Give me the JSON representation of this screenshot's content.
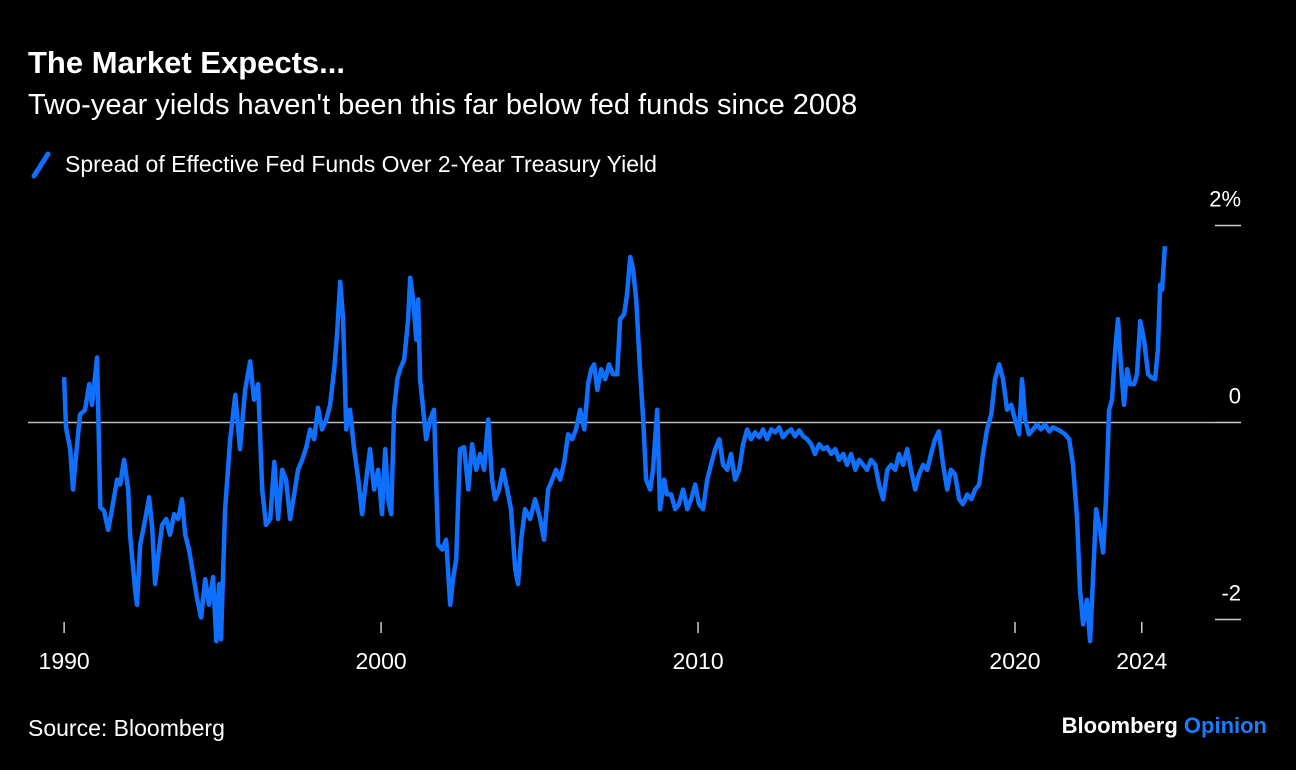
{
  "chart_data": {
    "type": "line",
    "title": "The Market Expects...",
    "subtitle": "Two-year yields haven't been this far below fed funds since 2008",
    "source": "Source: Bloomberg",
    "brand": "Bloomberg",
    "brand_suffix": "Opinion",
    "x": [
      1990.0,
      1990.06,
      1990.19,
      1990.28,
      1990.38,
      1990.5,
      1990.66,
      1990.79,
      1990.88,
      1991.04,
      1991.14,
      1991.26,
      1991.39,
      1991.51,
      1991.67,
      1991.77,
      1991.89,
      1992.02,
      1992.08,
      1992.24,
      1992.3,
      1992.4,
      1992.56,
      1992.68,
      1992.78,
      1992.87,
      1992.97,
      1993.09,
      1993.22,
      1993.34,
      1993.47,
      1993.6,
      1993.72,
      1993.82,
      1993.94,
      1994.07,
      1994.2,
      1994.32,
      1994.45,
      1994.57,
      1994.7,
      1994.8,
      1994.89,
      1994.95,
      1995.08,
      1995.24,
      1995.4,
      1995.55,
      1995.71,
      1995.87,
      1995.99,
      1996.12,
      1996.25,
      1996.37,
      1996.5,
      1996.63,
      1996.75,
      1996.88,
      1997.0,
      1997.13,
      1997.26,
      1997.38,
      1997.51,
      1997.64,
      1997.76,
      1997.89,
      1998.01,
      1998.14,
      1998.27,
      1998.39,
      1998.52,
      1998.61,
      1998.71,
      1998.8,
      1998.9,
      1999.02,
      1999.15,
      1999.28,
      1999.4,
      1999.53,
      1999.65,
      1999.78,
      1999.91,
      2000.03,
      2000.13,
      2000.22,
      2000.32,
      2000.41,
      2000.51,
      2000.6,
      2000.73,
      2000.85,
      2000.92,
      2001.01,
      2001.11,
      2001.17,
      2001.23,
      2001.33,
      2001.42,
      2001.55,
      2001.67,
      2001.8,
      2001.93,
      2002.05,
      2002.18,
      2002.27,
      2002.37,
      2002.49,
      2002.62,
      2002.75,
      2002.87,
      2003.0,
      2003.12,
      2003.25,
      2003.38,
      2003.5,
      2003.6,
      2003.72,
      2003.85,
      2003.98,
      2004.1,
      2004.23,
      2004.32,
      2004.42,
      2004.54,
      2004.7,
      2004.86,
      2005.02,
      2005.14,
      2005.27,
      2005.4,
      2005.52,
      2005.65,
      2005.78,
      2005.9,
      2006.03,
      2006.15,
      2006.28,
      2006.41,
      2006.53,
      2006.63,
      2006.72,
      2006.82,
      2006.94,
      2007.07,
      2007.19,
      2007.32,
      2007.45,
      2007.54,
      2007.67,
      2007.76,
      2007.86,
      2007.95,
      2008.05,
      2008.17,
      2008.27,
      2008.36,
      2008.49,
      2008.58,
      2008.71,
      2008.8,
      2008.93,
      2009.02,
      2009.15,
      2009.28,
      2009.4,
      2009.53,
      2009.66,
      2009.78,
      2009.91,
      2010.03,
      2010.16,
      2010.29,
      2010.41,
      2010.54,
      2010.67,
      2010.79,
      2010.92,
      2011.04,
      2011.17,
      2011.3,
      2011.42,
      2011.55,
      2011.67,
      2011.8,
      2011.93,
      2012.05,
      2012.18,
      2012.31,
      2012.43,
      2012.56,
      2012.68,
      2012.81,
      2012.94,
      2013.06,
      2013.19,
      2013.32,
      2013.44,
      2013.57,
      2013.69,
      2013.82,
      2013.95,
      2014.07,
      2014.2,
      2014.33,
      2014.45,
      2014.58,
      2014.7,
      2014.83,
      2014.96,
      2015.08,
      2015.21,
      2015.33,
      2015.46,
      2015.59,
      2015.71,
      2015.84,
      2015.97,
      2016.09,
      2016.22,
      2016.34,
      2016.47,
      2016.6,
      2016.72,
      2016.85,
      2016.97,
      2017.1,
      2017.23,
      2017.35,
      2017.48,
      2017.6,
      2017.73,
      2017.86,
      2017.98,
      2018.11,
      2018.24,
      2018.36,
      2018.49,
      2018.62,
      2018.74,
      2018.87,
      2018.99,
      2019.12,
      2019.25,
      2019.37,
      2019.5,
      2019.62,
      2019.75,
      2019.88,
      2020.0,
      2020.13,
      2020.22,
      2020.32,
      2020.44,
      2020.57,
      2020.7,
      2020.82,
      2020.95,
      2021.08,
      2021.2,
      2021.33,
      2021.45,
      2021.58,
      2021.71,
      2021.83,
      2021.96,
      2022.05,
      2022.15,
      2022.27,
      2022.37,
      2022.46,
      2022.56,
      2022.68,
      2022.78,
      2022.87,
      2022.97,
      2023.06,
      2023.16,
      2023.25,
      2023.35,
      2023.44,
      2023.54,
      2023.63,
      2023.76,
      2023.85,
      2023.95,
      2024.07,
      2024.2,
      2024.29,
      2024.42,
      2024.51,
      2024.58,
      2024.64,
      2024.73
    ],
    "series": [
      {
        "name": "Spread of Effective Fed Funds Over 2-Year Treasury Yield",
        "color": "#0f6fff",
        "values": [
          0.46,
          -0.05,
          -0.27,
          -0.68,
          -0.32,
          0.08,
          0.13,
          0.39,
          0.18,
          0.66,
          -0.86,
          -0.9,
          -1.09,
          -0.88,
          -0.58,
          -0.63,
          -0.38,
          -0.68,
          -1.14,
          -1.7,
          -1.85,
          -1.24,
          -0.98,
          -0.76,
          -1.07,
          -1.64,
          -1.34,
          -1.04,
          -0.98,
          -1.14,
          -0.93,
          -0.98,
          -0.78,
          -1.14,
          -1.29,
          -1.54,
          -1.8,
          -1.98,
          -1.59,
          -1.85,
          -1.57,
          -2.22,
          -1.64,
          -2.2,
          -0.88,
          -0.17,
          0.28,
          -0.27,
          0.33,
          0.62,
          0.23,
          0.39,
          -0.68,
          -1.04,
          -0.98,
          -0.4,
          -0.98,
          -0.48,
          -0.58,
          -0.98,
          -0.73,
          -0.48,
          -0.38,
          -0.25,
          -0.07,
          -0.17,
          0.15,
          -0.07,
          0.03,
          0.18,
          0.54,
          0.89,
          1.43,
          1.05,
          -0.07,
          0.13,
          -0.27,
          -0.58,
          -0.93,
          -0.58,
          -0.27,
          -0.68,
          -0.48,
          -0.93,
          -0.27,
          -0.78,
          -0.93,
          0.13,
          0.44,
          0.54,
          0.64,
          1.03,
          1.47,
          1.25,
          0.84,
          1.25,
          0.44,
          0.13,
          -0.17,
          0.03,
          0.13,
          -1.24,
          -1.29,
          -1.19,
          -1.85,
          -1.59,
          -1.39,
          -0.27,
          -0.25,
          -0.68,
          -0.22,
          -0.48,
          -0.32,
          -0.48,
          0.03,
          -0.58,
          -0.78,
          -0.68,
          -0.48,
          -0.68,
          -0.88,
          -1.49,
          -1.64,
          -1.19,
          -0.88,
          -0.98,
          -0.78,
          -0.98,
          -1.19,
          -0.68,
          -0.58,
          -0.48,
          -0.58,
          -0.4,
          -0.12,
          -0.17,
          -0.07,
          0.13,
          -0.07,
          0.39,
          0.54,
          0.59,
          0.33,
          0.54,
          0.44,
          0.59,
          0.49,
          0.49,
          1.05,
          1.1,
          1.3,
          1.68,
          1.55,
          1.25,
          0.54,
          0.03,
          -0.58,
          -0.68,
          -0.48,
          0.13,
          -0.88,
          -0.58,
          -0.73,
          -0.73,
          -0.88,
          -0.83,
          -0.68,
          -0.88,
          -0.78,
          -0.63,
          -0.83,
          -0.88,
          -0.58,
          -0.43,
          -0.27,
          -0.17,
          -0.43,
          -0.48,
          -0.32,
          -0.58,
          -0.48,
          -0.22,
          -0.07,
          -0.17,
          -0.1,
          -0.15,
          -0.07,
          -0.17,
          -0.07,
          -0.1,
          -0.05,
          -0.15,
          -0.1,
          -0.07,
          -0.14,
          -0.08,
          -0.14,
          -0.17,
          -0.22,
          -0.32,
          -0.22,
          -0.27,
          -0.25,
          -0.32,
          -0.27,
          -0.38,
          -0.32,
          -0.43,
          -0.32,
          -0.48,
          -0.38,
          -0.43,
          -0.48,
          -0.38,
          -0.43,
          -0.63,
          -0.78,
          -0.48,
          -0.43,
          -0.48,
          -0.32,
          -0.43,
          -0.27,
          -0.48,
          -0.68,
          -0.53,
          -0.43,
          -0.48,
          -0.32,
          -0.17,
          -0.09,
          -0.43,
          -0.68,
          -0.48,
          -0.53,
          -0.78,
          -0.83,
          -0.73,
          -0.78,
          -0.68,
          -0.63,
          -0.32,
          -0.07,
          0.08,
          0.44,
          0.59,
          0.44,
          0.13,
          0.18,
          0.03,
          -0.12,
          0.44,
          0.03,
          -0.12,
          -0.07,
          -0.02,
          -0.07,
          -0.02,
          -0.09,
          -0.05,
          -0.07,
          -0.09,
          -0.12,
          -0.17,
          -0.43,
          -0.98,
          -1.7,
          -2.05,
          -1.8,
          -2.22,
          -1.59,
          -0.88,
          -1.09,
          -1.32,
          -0.78,
          0.13,
          0.23,
          0.74,
          1.05,
          0.54,
          0.18,
          0.54,
          0.39,
          0.39,
          0.49,
          1.03,
          0.84,
          0.49,
          0.46,
          0.44,
          0.74,
          1.4,
          1.35,
          1.79
        ]
      }
    ],
    "xlim": [
      1988.86,
      2026.31
    ],
    "xticks": [
      1990,
      2000,
      2010,
      2020,
      2024
    ],
    "ylim": [
      -2.3,
      2.3
    ],
    "yticks": [
      {
        "value": 2,
        "label": "2%"
      },
      0,
      -2
    ]
  }
}
